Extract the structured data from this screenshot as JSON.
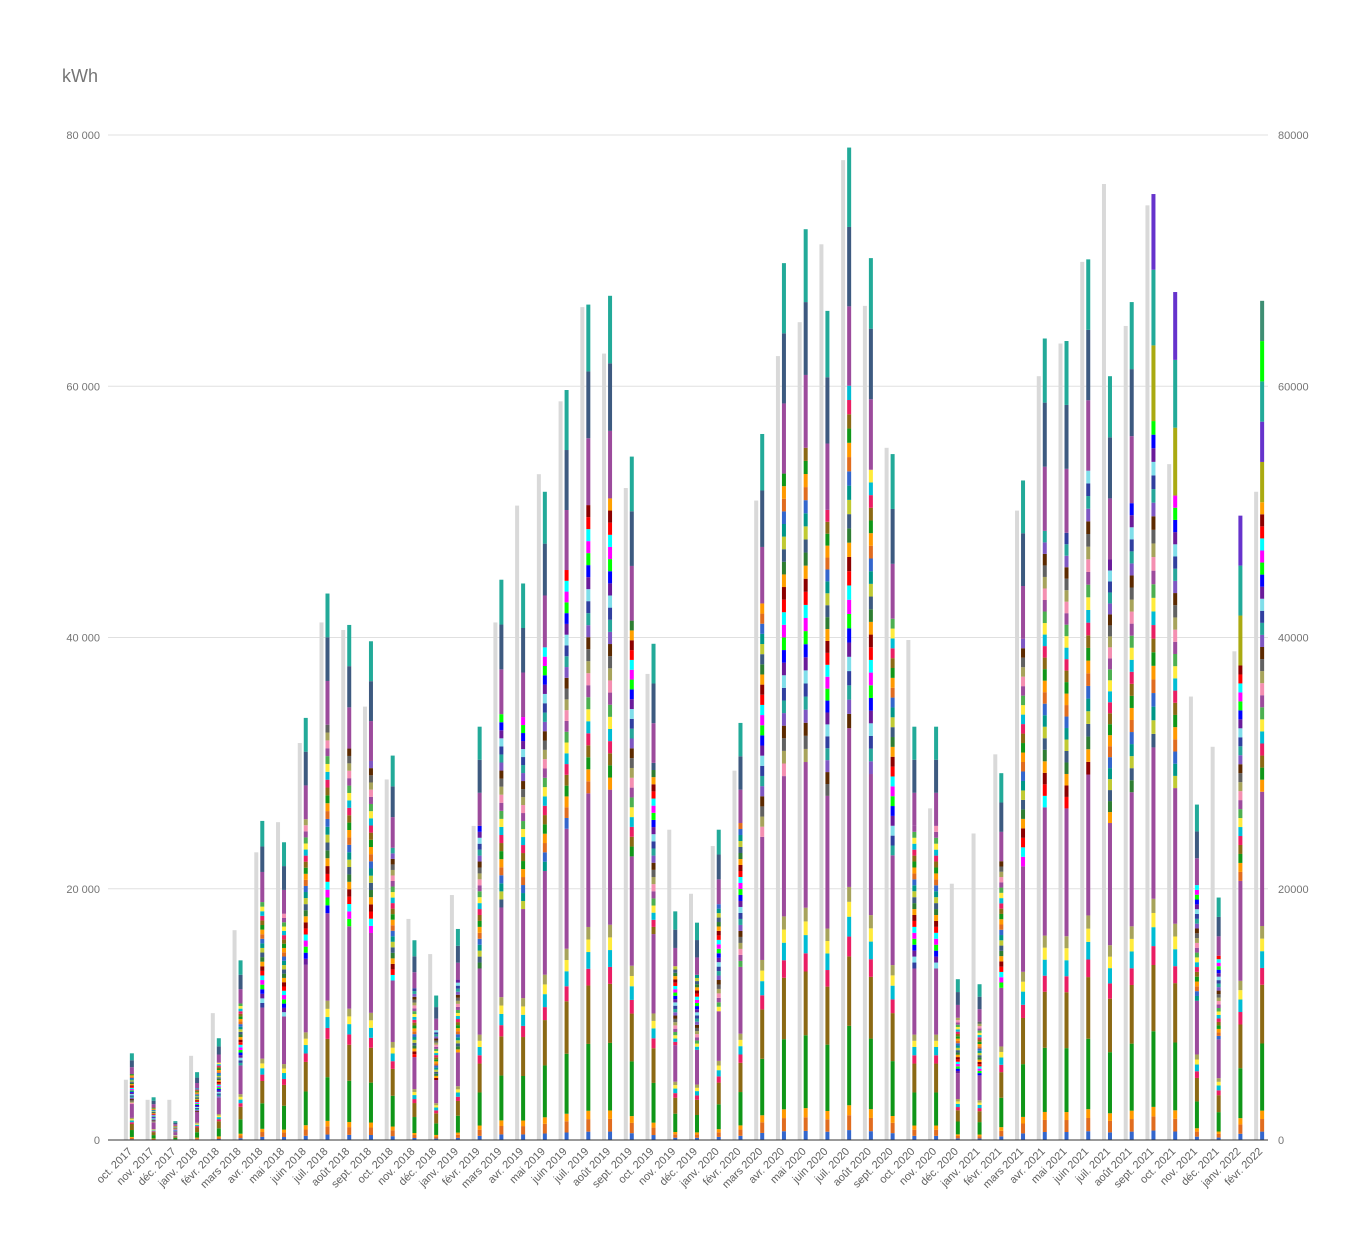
{
  "chart_data": {
    "type": "bar",
    "stacked": true,
    "unit_title": "kWh",
    "y_axis_left_ticks": [
      "0",
      "20 000",
      "40 000",
      "60 000",
      "80 000"
    ],
    "y_axis_right_ticks": [
      "0",
      "20000",
      "40000",
      "60000",
      "80000"
    ],
    "ylim": [
      0,
      80000
    ],
    "grid": true,
    "legend": "none",
    "categories": [
      "oct. 2017",
      "nov. 2017",
      "déc. 2017",
      "janv. 2018",
      "févr. 2018",
      "mars 2018",
      "avr. 2018",
      "mai 2018",
      "juin 2018",
      "juil. 2018",
      "août 2018",
      "sept. 2018",
      "oct. 2018",
      "nov. 2018",
      "déc. 2018",
      "janv. 2019",
      "févr. 2019",
      "mars 2019",
      "avr. 2019",
      "mai 2019",
      "juin 2019",
      "juil. 2019",
      "août 2019",
      "sept. 2019",
      "oct. 2019",
      "nov. 2019",
      "déc. 2019",
      "janv. 2020",
      "févr. 2020",
      "mars 2020",
      "avr. 2020",
      "mai 2020",
      "juin 2020",
      "juil. 2020",
      "août 2020",
      "sept. 2020",
      "oct. 2020",
      "nov. 2020",
      "déc. 2020",
      "janv. 2021",
      "févr. 2021",
      "mars 2021",
      "avr. 2021",
      "mai 2021",
      "juin 2021",
      "juil. 2021",
      "août 2021",
      "sept. 2021",
      "oct. 2021",
      "nov. 2021",
      "déc. 2021",
      "janv. 2022",
      "févr. 2022"
    ],
    "reference_totals": [
      4800,
      3200,
      3200,
      6700,
      10100,
      16700,
      22900,
      25300,
      31600,
      41200,
      40600,
      34500,
      28700,
      17600,
      14800,
      19500,
      25000,
      41200,
      50500,
      53000,
      58800,
      66300,
      62600,
      51900,
      37100,
      24700,
      19600,
      23400,
      29400,
      50900,
      62400,
      65100,
      71300,
      78000,
      66400,
      55100,
      39800,
      26400,
      20400,
      24400,
      30700,
      50100,
      60800,
      63400,
      69900,
      76100,
      64800,
      74400,
      53800,
      35300,
      31300,
      38900,
      51600
    ],
    "stack_totals": [
      6900,
      3400,
      1500,
      5400,
      8100,
      14300,
      25400,
      23700,
      33600,
      43500,
      41000,
      39700,
      30600,
      15900,
      11500,
      16800,
      32900,
      44600,
      44300,
      51600,
      59700,
      66500,
      67200,
      54400,
      39500,
      18200,
      17300,
      24700,
      33200,
      56200,
      69800,
      72500,
      66000,
      79000,
      70200,
      54600,
      32900,
      32900,
      12800,
      12400,
      29200,
      52500,
      63800,
      63600,
      70100,
      60800,
      66700,
      75300,
      67500,
      26700,
      19300,
      49700,
      66800
    ],
    "palette": [
      "#3366cc",
      "#e06c1f",
      "#ff9900",
      "#109618",
      "#8b6914",
      "#e91e63",
      "#00bcd4",
      "#ffeb3b",
      "#4caf50",
      "#9c4b9c",
      "#f48fb1",
      "#a7a35b",
      "#616161",
      "#5c2a00",
      "#7e57c2",
      "#26a69a",
      "#303f9f",
      "#80deea",
      "#6a1b9a",
      "#0000ff",
      "#00ff00",
      "#ff00ff",
      "#00ffff",
      "#ff0000",
      "#8b0000",
      "#ffa000",
      "#2e7d32",
      "#3d5a80",
      "#c0ca33",
      "#009688"
    ],
    "top_segments": {
      "sept. 2021": [
        "#aaaa11",
        "#22aa99",
        "#6633cc"
      ],
      "oct. 2021": [
        "#aaaa11",
        "#22aa99",
        "#6633cc"
      ],
      "janv. 2022": [
        "#aaaa11",
        "#22aa99",
        "#6633cc"
      ],
      "févr. 2022": [
        "#aaaa11",
        "#6633cc",
        "#22aa99",
        "#00ff00",
        "#3e8e73"
      ]
    }
  }
}
